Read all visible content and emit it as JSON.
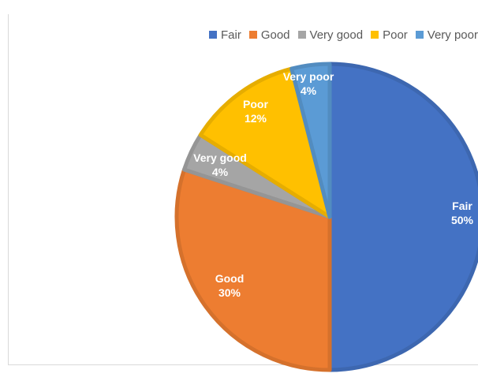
{
  "chart_data": {
    "type": "pie",
    "categories": [
      "Fair",
      "Good",
      "Very good",
      "Poor",
      "Very poor"
    ],
    "values": [
      50,
      30,
      4,
      12,
      4
    ],
    "data_labels": [
      "50%",
      "30%",
      "4%",
      "12%",
      "4%"
    ],
    "colors": [
      "#4472c4",
      "#ed7d31",
      "#a5a5a5",
      "#ffc000",
      "#5b9bd5"
    ],
    "legend_position": "top-right",
    "start_angle_deg": 0,
    "direction": "clockwise"
  }
}
